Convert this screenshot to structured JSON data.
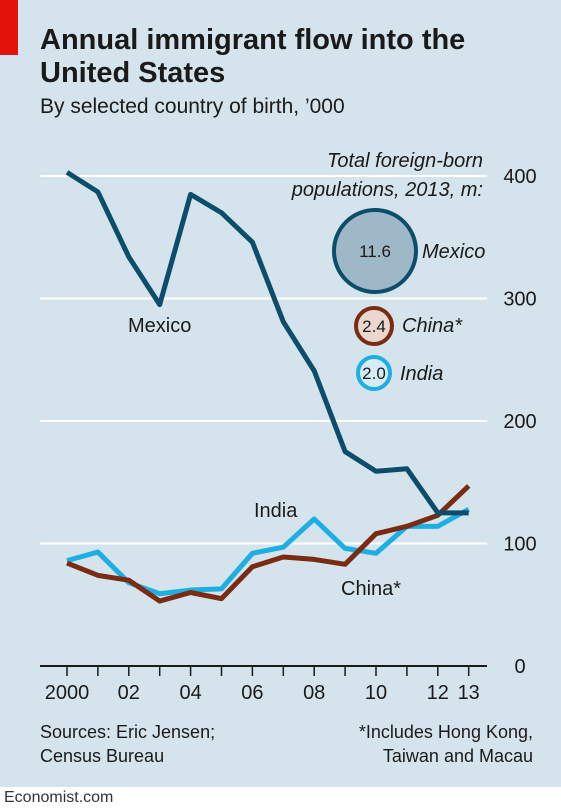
{
  "header": {
    "title": "Annual immigrant flow into the United States",
    "subtitle": "By selected country of birth, ’000"
  },
  "chart_data": {
    "type": "line",
    "title": "Annual immigrant flow into the United States",
    "subtitle": "By selected country of birth, ’000",
    "x": [
      2000,
      2001,
      2002,
      2003,
      2004,
      2005,
      2006,
      2007,
      2008,
      2009,
      2010,
      2011,
      2012,
      2013
    ],
    "x_tick_values": [
      2000,
      2002,
      2004,
      2006,
      2008,
      2010,
      2012,
      2013
    ],
    "x_tick_labels": [
      "2000",
      "02",
      "04",
      "06",
      "08",
      "10",
      "12",
      "13"
    ],
    "y_ticks": [
      0,
      100,
      200,
      300,
      400
    ],
    "ylim": [
      0,
      420
    ],
    "y_axis_position": "right",
    "grid": true,
    "series": [
      {
        "name": "Mexico",
        "color": "#0b4d6b",
        "values": [
          403,
          387,
          334,
          295,
          385,
          370,
          346,
          281,
          241,
          175,
          159,
          161,
          125,
          125
        ]
      },
      {
        "name": "India",
        "color": "#1eaee2",
        "values": [
          86,
          93,
          68,
          59,
          62,
          63,
          92,
          97,
          120,
          96,
          92,
          114,
          114,
          128
        ]
      },
      {
        "name": "China*",
        "color": "#7a2b13",
        "values": [
          84,
          74,
          70,
          53,
          60,
          55,
          81,
          89,
          87,
          83,
          108,
          114,
          123,
          147
        ]
      }
    ],
    "legend": {
      "title_line1": "Total foreign-born",
      "title_line2": "populations, 2013, m:",
      "items": [
        {
          "name": "Mexico",
          "value": "11.6",
          "stroke": "#0b4d6b",
          "fill": "#9fb8c7",
          "text_color": "#0b4d6b"
        },
        {
          "name": "China*",
          "value": "2.4",
          "stroke": "#7a2b13",
          "fill": "#ead7cf",
          "text_color": "#7a2b13"
        },
        {
          "name": "India",
          "value": "2.0",
          "stroke": "#1eaee2",
          "fill": "#d5ecf6",
          "text_color": "#1eaee2"
        }
      ]
    }
  },
  "footer": {
    "sources_line1": "Sources: Eric Jensen;",
    "sources_line2": "Census Bureau",
    "note_line1": "*Includes Hong Kong,",
    "note_line2": "Taiwan and Macau",
    "brand": "Economist.com"
  },
  "colors": {
    "background": "#d5e4ec",
    "accent": "#e3120b",
    "gridline": "#ffffff"
  }
}
